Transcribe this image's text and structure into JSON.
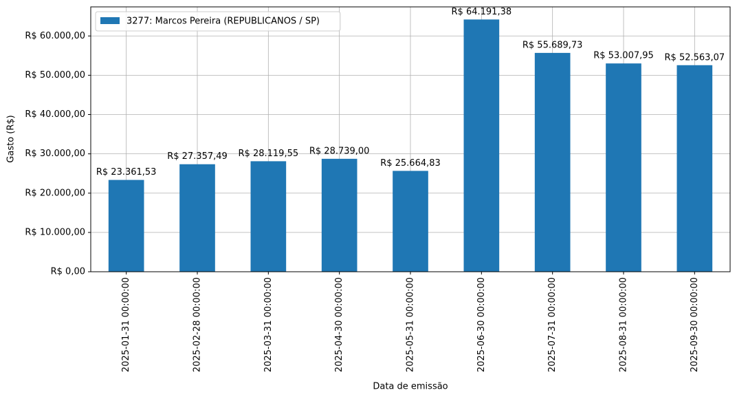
{
  "chart_data": {
    "type": "bar",
    "categories": [
      "2025-01-31 00:00:00",
      "2025-02-28 00:00:00",
      "2025-03-31 00:00:00",
      "2025-04-30 00:00:00",
      "2025-05-31 00:00:00",
      "2025-06-30 00:00:00",
      "2025-07-31 00:00:00",
      "2025-08-31 00:00:00",
      "2025-09-30 00:00:00"
    ],
    "series": [
      {
        "name": "3277: Marcos Pereira (REPUBLICANOS / SP)",
        "color": "#1f77b4",
        "values": [
          23361.53,
          27357.49,
          28119.55,
          28739.0,
          25664.83,
          64191.38,
          55689.73,
          53007.95,
          52563.07
        ],
        "value_labels": [
          "R$ 23.361,53",
          "R$ 27.357,49",
          "R$ 28.119,55",
          "R$ 28.739,00",
          "R$ 25.664,83",
          "R$ 64.191,38",
          "R$ 55.689,73",
          "R$ 53.007,95",
          "R$ 52.563,07"
        ]
      }
    ],
    "xlabel": "Data de emissão",
    "ylabel": "Gasto (R$)",
    "ylim": [
      0,
      67400
    ],
    "yticks": [
      {
        "value": 0,
        "label": "R$ 0,00"
      },
      {
        "value": 10000,
        "label": "R$ 10.000,00"
      },
      {
        "value": 20000,
        "label": "R$ 20.000,00"
      },
      {
        "value": 30000,
        "label": "R$ 30.000,00"
      },
      {
        "value": 40000,
        "label": "R$ 40.000,00"
      },
      {
        "value": 50000,
        "label": "R$ 50.000,00"
      },
      {
        "value": 60000,
        "label": "R$ 60.000,00"
      }
    ],
    "grid": true,
    "legend": "upper left"
  }
}
